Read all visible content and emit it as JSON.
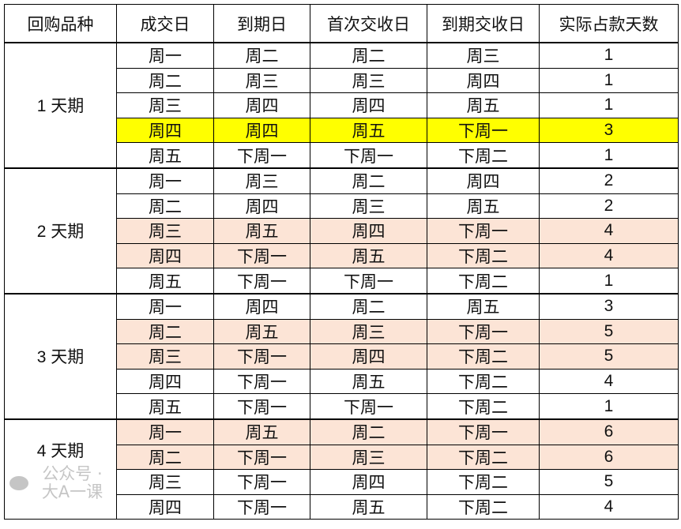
{
  "headers": [
    "回购品种",
    "成交日",
    "到期日",
    "首次交收日",
    "到期交收日",
    "实际占款天数"
  ],
  "colors": {
    "yellow": "#ffff00",
    "peach": "#fce4d6"
  },
  "groups": [
    {
      "label": "1 天期",
      "rows": [
        {
          "c": [
            "周一",
            "周二",
            "周二",
            "周三",
            "1"
          ],
          "hl": ""
        },
        {
          "c": [
            "周二",
            "周三",
            "周三",
            "周四",
            "1"
          ],
          "hl": ""
        },
        {
          "c": [
            "周三",
            "周四",
            "周四",
            "周五",
            "1"
          ],
          "hl": ""
        },
        {
          "c": [
            "周四",
            "周四",
            "周五",
            "下周一",
            "3"
          ],
          "hl": "yellow"
        },
        {
          "c": [
            "周五",
            "下周一",
            "下周一",
            "下周二",
            "1"
          ],
          "hl": ""
        }
      ]
    },
    {
      "label": "2 天期",
      "rows": [
        {
          "c": [
            "周一",
            "周三",
            "周二",
            "周四",
            "2"
          ],
          "hl": ""
        },
        {
          "c": [
            "周二",
            "周四",
            "周三",
            "周五",
            "2"
          ],
          "hl": ""
        },
        {
          "c": [
            "周三",
            "周五",
            "周四",
            "下周一",
            "4"
          ],
          "hl": "peach"
        },
        {
          "c": [
            "周四",
            "下周一",
            "周五",
            "下周二",
            "4"
          ],
          "hl": "peach"
        },
        {
          "c": [
            "周五",
            "下周一",
            "下周一",
            "下周二",
            "1"
          ],
          "hl": ""
        }
      ]
    },
    {
      "label": "3 天期",
      "rows": [
        {
          "c": [
            "周一",
            "周四",
            "周二",
            "周五",
            "3"
          ],
          "hl": ""
        },
        {
          "c": [
            "周二",
            "周五",
            "周三",
            "下周一",
            "5"
          ],
          "hl": "peach"
        },
        {
          "c": [
            "周三",
            "下周一",
            "周四",
            "下周二",
            "5"
          ],
          "hl": "peach"
        },
        {
          "c": [
            "周四",
            "下周一",
            "周五",
            "下周二",
            "4"
          ],
          "hl": ""
        },
        {
          "c": [
            "周五",
            "下周一",
            "下周一",
            "下周二",
            "1"
          ],
          "hl": ""
        }
      ]
    },
    {
      "label": "4 天期",
      "rows": [
        {
          "c": [
            "周一",
            "周五",
            "周二",
            "下周一",
            "6"
          ],
          "hl": "peach"
        },
        {
          "c": [
            "周二",
            "下周一",
            "周三",
            "下周二",
            "6"
          ],
          "hl": "peach"
        },
        {
          "c": [
            "周三",
            "下周一",
            "周四",
            "下周二",
            "5"
          ],
          "hl": ""
        },
        {
          "c": [
            "周四",
            "下周一",
            "周五",
            "下周二",
            "4"
          ],
          "hl": ""
        }
      ]
    }
  ],
  "watermark": "公众号 · 大A一课"
}
